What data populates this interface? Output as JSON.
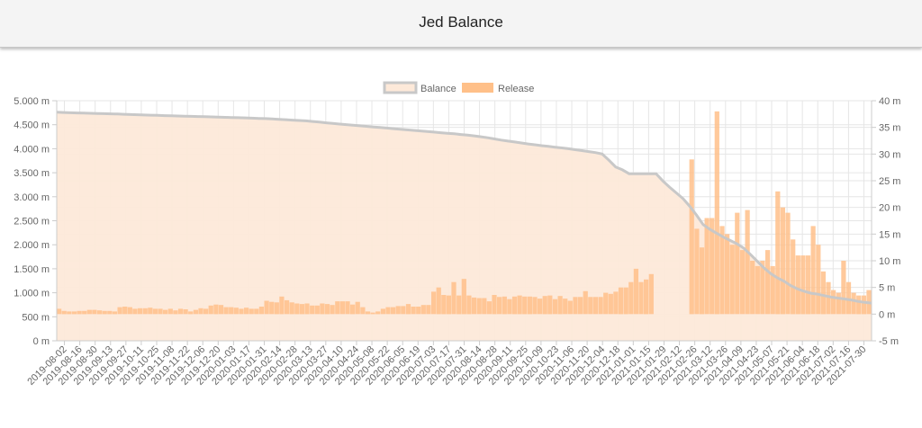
{
  "header": {
    "title": "Jed Balance"
  },
  "colors": {
    "balance_line": "#c8c8c8",
    "balance_fill": "#fde9d9",
    "release_bar": "#ffc089",
    "grid": "#e6e6e6"
  },
  "chart_data": {
    "type": "bar+line",
    "title": "Jed Balance",
    "legend": {
      "position": "top-center",
      "entries": [
        "Balance",
        "Release"
      ]
    },
    "y_left": {
      "label": "",
      "range": [
        0,
        5000
      ],
      "unit": "m",
      "ticks": [
        "0 m",
        "500 m",
        "1.000 m",
        "1.500 m",
        "2.000 m",
        "2.500 m",
        "3.000 m",
        "3.500 m",
        "4.000 m",
        "4.500 m",
        "5.000 m"
      ]
    },
    "y_right": {
      "label": "",
      "range": [
        -5,
        40
      ],
      "unit": "m",
      "ticks": [
        "-5 m",
        "0 m",
        "5 m",
        "10 m",
        "15 m",
        "20 m",
        "25 m",
        "30 m",
        "35 m",
        "40 m"
      ]
    },
    "grid": true,
    "x_labels": [
      "2019-08-02",
      "2019-08-16",
      "2019-08-30",
      "2019-09-13",
      "2019-09-27",
      "2019-10-11",
      "2019-10-25",
      "2019-11-08",
      "2019-11-22",
      "2019-12-06",
      "2019-12-20",
      "2020-01-03",
      "2020-01-17",
      "2020-01-31",
      "2020-02-14",
      "2020-02-28",
      "2020-03-13",
      "2020-03-27",
      "2020-04-10",
      "2020-04-24",
      "2020-05-08",
      "2020-05-22",
      "2020-06-05",
      "2020-06-19",
      "2020-07-03",
      "2020-07-17",
      "2020-07-31",
      "2020-08-14",
      "2020-08-28",
      "2020-09-11",
      "2020-09-25",
      "2020-10-09",
      "2020-10-23",
      "2020-11-06",
      "2020-11-20",
      "2020-12-04",
      "2020-12-18",
      "2021-01-01",
      "2021-01-15",
      "2021-01-29",
      "2021-02-12",
      "2021-02-26",
      "2021-03-12",
      "2021-03-26",
      "2021-04-09",
      "2021-04-23",
      "2021-05-07",
      "2021-05-21",
      "2021-06-04",
      "2021-06-18",
      "2021-07-02",
      "2021-07-16",
      "2021-07-30"
    ],
    "series": [
      {
        "name": "Balance",
        "type": "area-line",
        "axis": "left",
        "values": [
          4760,
          4755,
          4750,
          4746,
          4742,
          4738,
          4734,
          4730,
          4726,
          4722,
          4717,
          4712,
          4707,
          4702,
          4698,
          4694,
          4690,
          4686,
          4682,
          4678,
          4674,
          4670,
          4666,
          4662,
          4658,
          4654,
          4650,
          4646,
          4642,
          4637,
          4632,
          4627,
          4620,
          4612,
          4604,
          4596,
          4588,
          4580,
          4568,
          4554,
          4540,
          4526,
          4514,
          4502,
          4490,
          4478,
          4466,
          4454,
          4442,
          4430,
          4418,
          4406,
          4394,
          4382,
          4370,
          4358,
          4346,
          4334,
          4322,
          4310,
          4296,
          4282,
          4268,
          4250,
          4228,
          4204,
          4180,
          4160,
          4140,
          4120,
          4100,
          4082,
          4064,
          4048,
          4032,
          4016,
          4000,
          3980,
          3960,
          3940,
          3920,
          3890,
          3760,
          3620,
          3560,
          3480,
          3480,
          3480,
          3480,
          3480,
          3330,
          3200,
          3080,
          2960,
          2800,
          2620,
          2420,
          2320,
          2240,
          2160,
          2090,
          2020,
          1930,
          1800,
          1660,
          1520,
          1400,
          1310,
          1240,
          1150,
          1080,
          1030,
          990,
          970,
          940,
          910,
          890,
          870,
          850,
          820,
          800,
          785
        ]
      },
      {
        "name": "Release",
        "type": "bar",
        "axis": "right",
        "values": [
          1.0,
          0.6,
          0.5,
          0.5,
          0.6,
          0.6,
          0.8,
          0.8,
          0.7,
          0.6,
          0.6,
          0.5,
          1.3,
          1.4,
          1.3,
          1.0,
          1.1,
          1.1,
          1.2,
          1.0,
          1.0,
          0.8,
          1.0,
          0.7,
          1.0,
          0.9,
          0.5,
          0.8,
          1.1,
          1.0,
          1.6,
          1.8,
          1.7,
          1.3,
          1.3,
          1.2,
          1.0,
          1.2,
          1.0,
          1.0,
          1.4,
          2.5,
          2.3,
          2.2,
          3.3,
          2.6,
          2.2,
          2.0,
          1.9,
          2.0,
          1.6,
          1.6,
          2.0,
          1.9,
          1.7,
          2.4,
          2.4,
          2.4,
          1.8,
          2.3,
          1.3,
          0.5,
          0.3,
          0.5,
          1.0,
          1.3,
          1.3,
          1.5,
          1.5,
          1.9,
          1.4,
          1.4,
          1.7,
          1.7,
          4.2,
          5.0,
          3.6,
          3.5,
          6.0,
          3.5,
          6.6,
          3.5,
          3.1,
          3.0,
          3.0,
          2.4,
          3.6,
          3.2,
          3.3,
          2.8,
          3.3,
          3.5,
          3.3,
          3.3,
          3.2,
          2.9,
          3.4,
          3.5,
          2.8,
          3.4,
          2.9,
          2.5,
          3.2,
          3.2,
          4.3,
          3.2,
          3.2,
          3.2,
          4.0,
          3.8,
          4.2,
          5.0,
          5.0,
          6.0,
          8.5,
          6.0,
          6.5,
          7.5,
          0,
          0,
          0,
          0,
          0,
          0,
          0,
          29.0,
          16.0,
          12.5,
          18.0,
          18.0,
          38.0,
          16.5,
          15.0,
          13.0,
          19.0,
          12.0,
          19.5,
          10.0,
          9.0,
          10.0,
          12.0,
          9.0,
          23.0,
          20.0,
          19.0,
          14.0,
          11.0,
          11.0,
          11.0,
          16.5,
          13.0,
          8.0,
          6.0,
          4.5,
          4.0,
          10.0,
          6.0,
          4.0,
          3.5,
          3.5,
          4.5
        ]
      }
    ]
  }
}
